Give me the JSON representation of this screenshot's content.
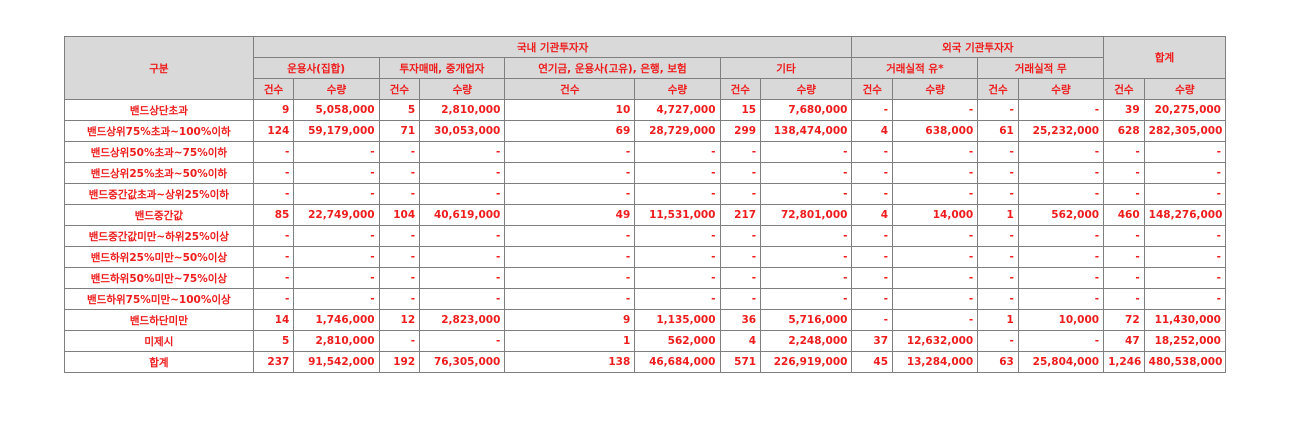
{
  "header": {
    "category": "구분",
    "domestic_group": "국내 기관투자자",
    "foreign_group": "외국 기관투자자",
    "total_group": "합계",
    "sub_groups": [
      "운용사(집합)",
      "투자매매, 중개업자",
      "연기금, 운용사(고유), 은행, 보험",
      "기타",
      "거래실적 유*",
      "거래실적 무"
    ],
    "count_label": "건수",
    "qty_label": "수량"
  },
  "rows": [
    {
      "label": "밴드상단초과",
      "values": [
        "9",
        "5,058,000",
        "5",
        "2,810,000",
        "10",
        "4,727,000",
        "15",
        "7,680,000",
        "-",
        "-",
        "-",
        "-",
        "39",
        "20,275,000"
      ]
    },
    {
      "label": "밴드상위75%초과~100%이하",
      "values": [
        "124",
        "59,179,000",
        "71",
        "30,053,000",
        "69",
        "28,729,000",
        "299",
        "138,474,000",
        "4",
        "638,000",
        "61",
        "25,232,000",
        "628",
        "282,305,000"
      ]
    },
    {
      "label": "밴드상위50%초과~75%이하",
      "values": [
        "-",
        "-",
        "-",
        "-",
        "-",
        "-",
        "-",
        "-",
        "-",
        "-",
        "-",
        "-",
        "-",
        "-"
      ]
    },
    {
      "label": "밴드상위25%초과~50%이하",
      "values": [
        "-",
        "-",
        "-",
        "-",
        "-",
        "-",
        "-",
        "-",
        "-",
        "-",
        "-",
        "-",
        "-",
        "-"
      ]
    },
    {
      "label": "밴드중간값초과~상위25%이하",
      "values": [
        "-",
        "-",
        "-",
        "-",
        "-",
        "-",
        "-",
        "-",
        "-",
        "-",
        "-",
        "-",
        "-",
        "-"
      ]
    },
    {
      "label": "밴드중간값",
      "values": [
        "85",
        "22,749,000",
        "104",
        "40,619,000",
        "49",
        "11,531,000",
        "217",
        "72,801,000",
        "4",
        "14,000",
        "1",
        "562,000",
        "460",
        "148,276,000"
      ]
    },
    {
      "label": "밴드중간값미만~하위25%이상",
      "values": [
        "-",
        "-",
        "-",
        "-",
        "-",
        "-",
        "-",
        "-",
        "-",
        "-",
        "-",
        "-",
        "-",
        "-"
      ]
    },
    {
      "label": "밴드하위25%미만~50%이상",
      "values": [
        "-",
        "-",
        "-",
        "-",
        "-",
        "-",
        "-",
        "-",
        "-",
        "-",
        "-",
        "-",
        "-",
        "-"
      ]
    },
    {
      "label": "밴드하위50%미만~75%이상",
      "values": [
        "-",
        "-",
        "-",
        "-",
        "-",
        "-",
        "-",
        "-",
        "-",
        "-",
        "-",
        "-",
        "-",
        "-"
      ]
    },
    {
      "label": "밴드하위75%미만~100%이상",
      "values": [
        "-",
        "-",
        "-",
        "-",
        "-",
        "-",
        "-",
        "-",
        "-",
        "-",
        "-",
        "-",
        "-",
        "-"
      ]
    },
    {
      "label": "밴드하단미만",
      "values": [
        "14",
        "1,746,000",
        "12",
        "2,823,000",
        "9",
        "1,135,000",
        "36",
        "5,716,000",
        "-",
        "-",
        "1",
        "10,000",
        "72",
        "11,430,000"
      ]
    },
    {
      "label": "미제시",
      "values": [
        "5",
        "2,810,000",
        "-",
        "-",
        "1",
        "562,000",
        "4",
        "2,248,000",
        "37",
        "12,632,000",
        "-",
        "-",
        "47",
        "18,252,000"
      ]
    },
    {
      "label": "합계",
      "values": [
        "237",
        "91,542,000",
        "192",
        "76,305,000",
        "138",
        "46,684,000",
        "571",
        "226,919,000",
        "45",
        "13,284,000",
        "63",
        "25,804,000",
        "1,246",
        "480,538,000"
      ]
    }
  ]
}
